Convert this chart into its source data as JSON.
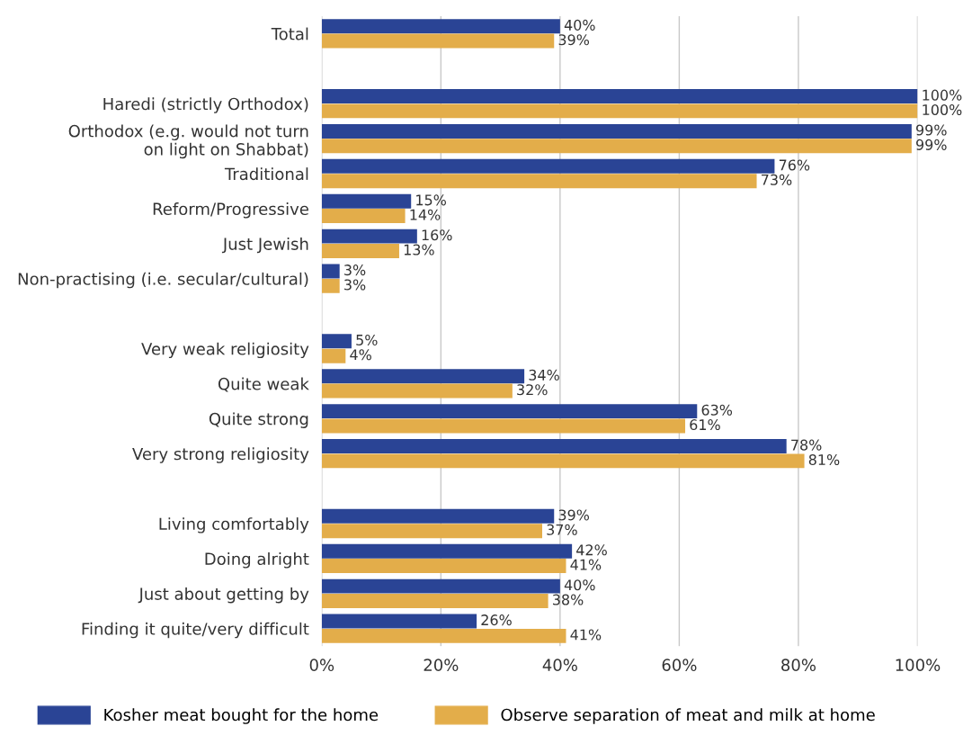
{
  "chart_data": {
    "type": "bar",
    "orientation": "horizontal",
    "categories": [
      "Total",
      null,
      "Haredi (strictly Orthodox)",
      "Orthodox (e.g. would not turn\non light on Shabbat)",
      "Traditional",
      "Reform/Progressive",
      "Just Jewish",
      "Non-practising (i.e. secular/cultural)",
      null,
      "Very weak religiosity",
      "Quite weak",
      "Quite strong",
      "Very strong religiosity",
      null,
      "Living comfortably",
      "Doing alright",
      "Just about getting by",
      "Finding it quite/very difficult"
    ],
    "series": [
      {
        "name": "Kosher meat bought for the home",
        "color": "#2a4495",
        "values": [
          40,
          null,
          100,
          99,
          76,
          15,
          16,
          3,
          null,
          5,
          34,
          63,
          78,
          null,
          39,
          42,
          40,
          26
        ],
        "value_labels": [
          "40%",
          null,
          "100%",
          "99%",
          "76%",
          "15%",
          "16%",
          "3%",
          null,
          "5%",
          "34%",
          "63%",
          "78%",
          null,
          "39%",
          "42%",
          "40%",
          "26%"
        ]
      },
      {
        "name": "Observe separation of meat and milk at home",
        "color": "#e3ad4a",
        "values": [
          39,
          null,
          100,
          99,
          73,
          14,
          13,
          3,
          null,
          4,
          32,
          61,
          81,
          null,
          37,
          41,
          38,
          41
        ],
        "value_labels": [
          "39%",
          null,
          "100%",
          "99%",
          "73%",
          "14%",
          "13%",
          "3%",
          null,
          "4%",
          "32%",
          "61%",
          "81%",
          null,
          "37%",
          "41%",
          "38%",
          "41%"
        ]
      }
    ],
    "xlim": [
      0,
      100
    ],
    "xticks": [
      {
        "value": 0,
        "label": "0%"
      },
      {
        "value": 20,
        "label": "20%"
      },
      {
        "value": 40,
        "label": "40%"
      },
      {
        "value": 60,
        "label": "60%"
      },
      {
        "value": 80,
        "label": "80%"
      },
      {
        "value": 100,
        "label": "100%"
      }
    ],
    "grid": "x",
    "legend": "bottom"
  }
}
